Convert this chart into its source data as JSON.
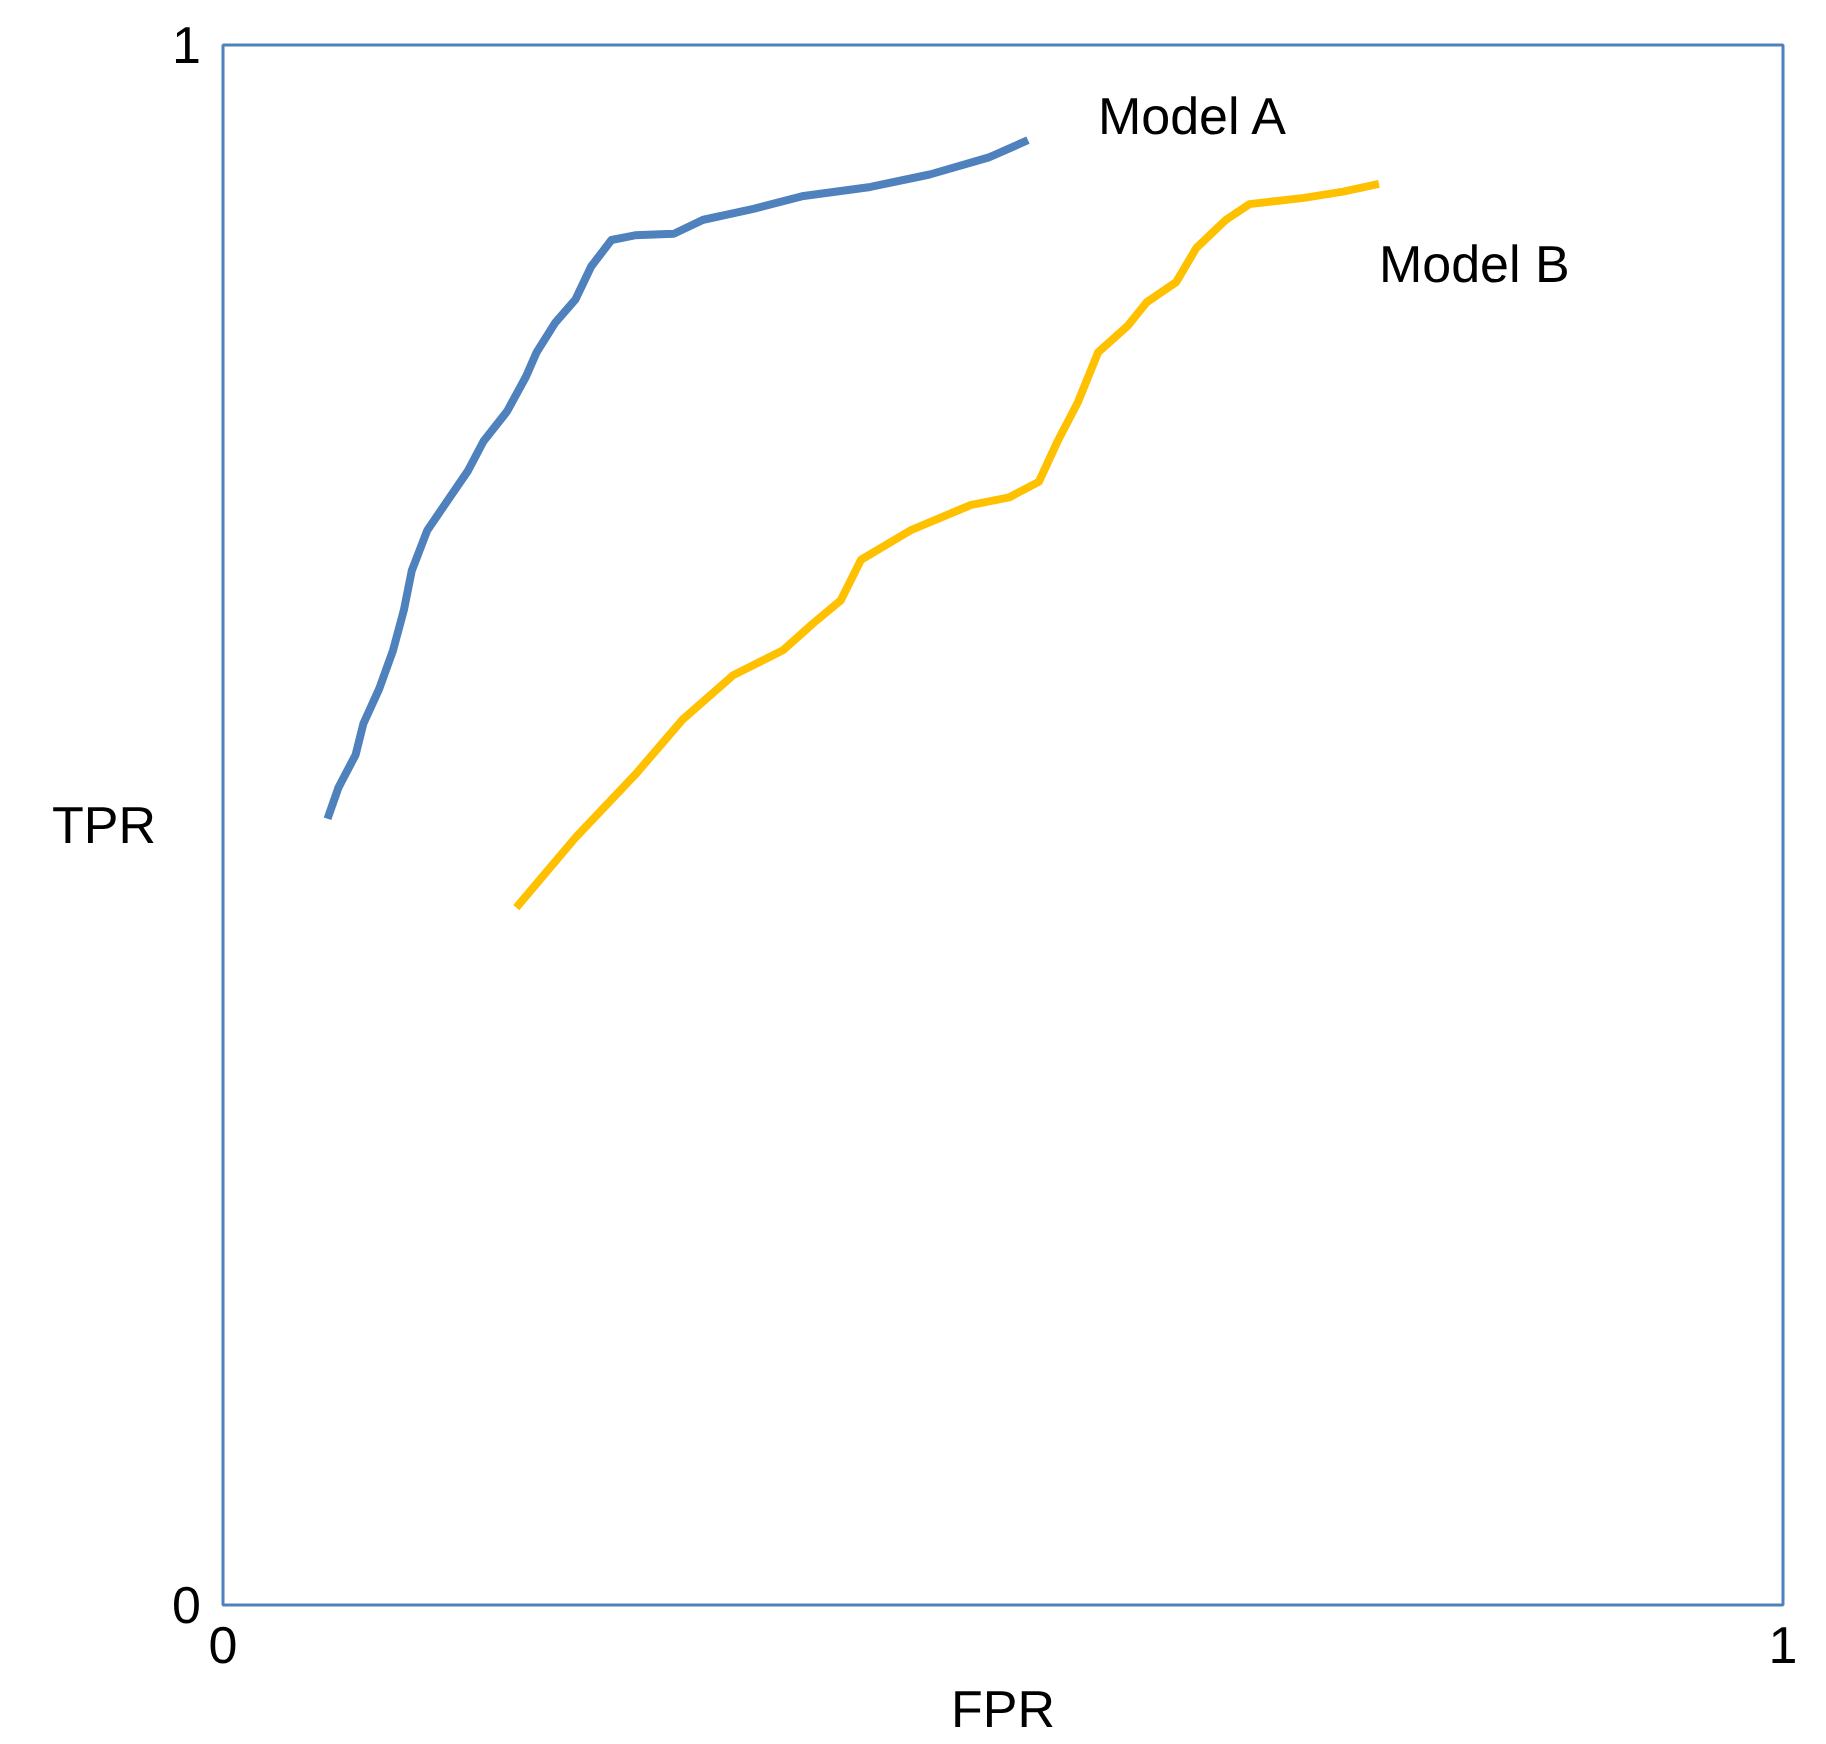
{
  "chart_data": {
    "type": "line",
    "xlabel": "FPR",
    "ylabel": "TPR",
    "xlim": [
      0,
      1
    ],
    "ylim": [
      0,
      1
    ],
    "xticks": [
      0,
      1
    ],
    "yticks": [
      0,
      1
    ],
    "legend": false,
    "line_style": "solid",
    "series": [
      {
        "name": "Model A",
        "color": "#4f81bd",
        "x": [
          0.067,
          0.074,
          0.085,
          0.09,
          0.1,
          0.109,
          0.116,
          0.121,
          0.131,
          0.144,
          0.157,
          0.167,
          0.182,
          0.194,
          0.201,
          0.213,
          0.226,
          0.236,
          0.249,
          0.264,
          0.289,
          0.308,
          0.34,
          0.371,
          0.415,
          0.453,
          0.491,
          0.516
        ],
        "values": [
          0.504,
          0.524,
          0.545,
          0.565,
          0.587,
          0.612,
          0.638,
          0.663,
          0.689,
          0.708,
          0.727,
          0.746,
          0.765,
          0.787,
          0.803,
          0.822,
          0.837,
          0.858,
          0.875,
          0.878,
          0.879,
          0.888,
          0.895,
          0.903,
          0.909,
          0.917,
          0.928,
          0.939
        ]
      },
      {
        "name": "Model B",
        "color": "#ffc000",
        "x": [
          0.188,
          0.226,
          0.264,
          0.295,
          0.327,
          0.359,
          0.378,
          0.396,
          0.409,
          0.441,
          0.479,
          0.504,
          0.523,
          0.535,
          0.548,
          0.561,
          0.58,
          0.592,
          0.611,
          0.624,
          0.643,
          0.658,
          0.693,
          0.718,
          0.741
        ],
        "values": [
          0.447,
          0.492,
          0.532,
          0.568,
          0.596,
          0.612,
          0.629,
          0.644,
          0.67,
          0.689,
          0.705,
          0.71,
          0.72,
          0.746,
          0.771,
          0.803,
          0.82,
          0.835,
          0.848,
          0.87,
          0.888,
          0.898,
          0.902,
          0.906,
          0.911
        ]
      }
    ]
  }
}
